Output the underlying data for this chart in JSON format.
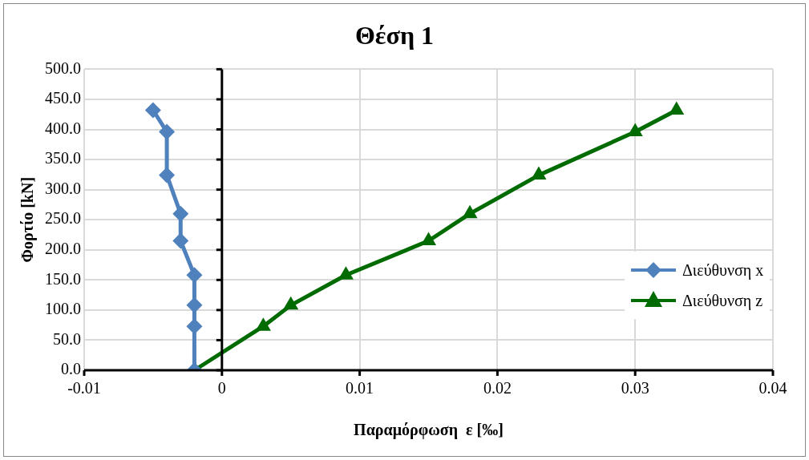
{
  "chart_data": {
    "type": "line",
    "title": "Θέση 1",
    "xlabel": "Παραμόρφωση  ε [‰]",
    "ylabel": "Φορτίο [kN]",
    "xlim": [
      -0.01,
      0.04
    ],
    "xticks": [
      -0.01,
      0,
      0.01,
      0.02,
      0.03,
      0.04
    ],
    "ylim": [
      0,
      500
    ],
    "yticks": [
      {
        "value": 0,
        "label": "0.0"
      },
      {
        "value": 50,
        "label": "50.0"
      },
      {
        "value": 100,
        "label": "100.0"
      },
      {
        "value": 150,
        "label": "150.0"
      },
      {
        "value": 200,
        "label": "200.0"
      },
      {
        "value": 250,
        "label": "250.0"
      },
      {
        "value": 300,
        "label": "300.0"
      },
      {
        "value": 350,
        "label": "350.0"
      },
      {
        "value": 400,
        "label": "400.0"
      },
      {
        "value": 450,
        "label": "450.0"
      },
      {
        "value": 500,
        "label": "500.0"
      }
    ],
    "grid": true,
    "legend": "right",
    "line_style": "solid",
    "series": [
      {
        "name": "Διεύθυνση  x",
        "color": "#4f81bd",
        "marker": "diamond",
        "x": [
          -0.002,
          -0.002,
          -0.002,
          -0.002,
          -0.003,
          -0.003,
          -0.004,
          -0.004,
          -0.005
        ],
        "values": [
          0,
          73,
          108,
          158,
          215,
          260,
          324,
          396,
          432
        ]
      },
      {
        "name": "Διεύθυνση  z",
        "color": "#006b00",
        "marker": "triangle",
        "x": [
          -0.002,
          0.003,
          0.005,
          0.009,
          0.015,
          0.018,
          0.023,
          0.03,
          0.033
        ],
        "values": [
          0,
          73,
          108,
          158,
          215,
          260,
          324,
          396,
          432
        ]
      }
    ]
  }
}
